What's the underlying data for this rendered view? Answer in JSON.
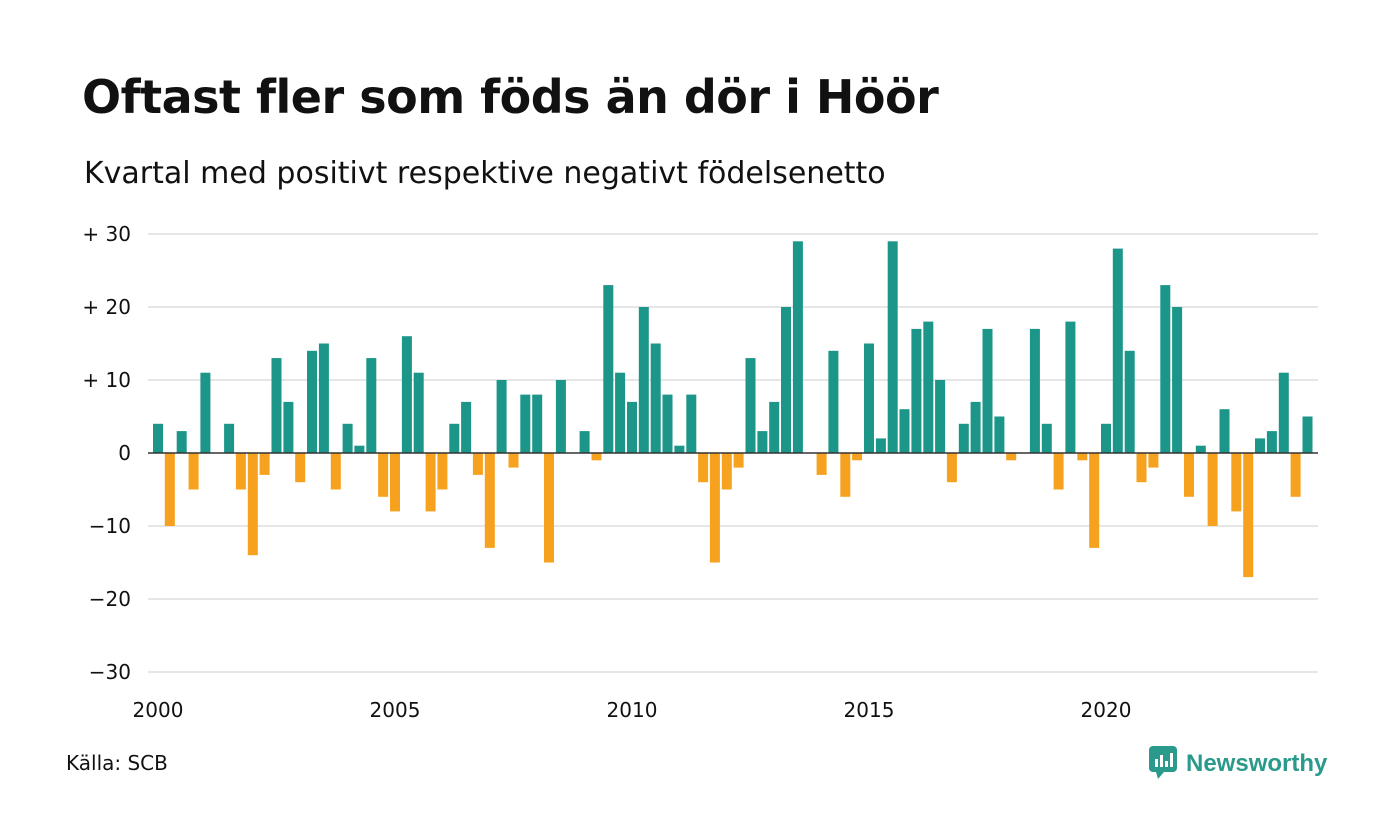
{
  "title": "Oftast fler som föds än dör i Höör",
  "subtitle": "Kvartal med positivt respektive negativt födelsenetto",
  "source": "Källa: SCB",
  "brand": "Newsworthy",
  "colors": {
    "positive": "#1b9688",
    "negative": "#f6a21e",
    "grid": "#dddddd",
    "brand": "#2a9a8c"
  },
  "chart_data": {
    "type": "bar",
    "x_start": 2000.0,
    "x_step": 0.25,
    "x_ticks": [
      2000,
      2005,
      2010,
      2015,
      2020
    ],
    "y_ticks": [
      30,
      20,
      10,
      0,
      -10,
      -20,
      -30
    ],
    "y_tick_labels": [
      "+ 30",
      "+ 20",
      "+ 10",
      "0",
      "−10",
      "−20",
      "−30"
    ],
    "ylim": [
      -30,
      30
    ],
    "grid": true,
    "values": [
      4,
      -10,
      3,
      -5,
      11,
      0,
      4,
      -5,
      -14,
      -3,
      13,
      7,
      -4,
      14,
      15,
      -5,
      4,
      1,
      13,
      -6,
      -8,
      16,
      11,
      -8,
      -5,
      4,
      7,
      -3,
      -13,
      10,
      -2,
      8,
      8,
      -15,
      10,
      0,
      3,
      -1,
      23,
      11,
      7,
      20,
      15,
      8,
      1,
      8,
      -4,
      -15,
      -5,
      -2,
      13,
      3,
      7,
      20,
      29,
      0,
      -3,
      14,
      -6,
      -1,
      15,
      2,
      29,
      6,
      17,
      18,
      10,
      -4,
      4,
      7,
      17,
      5,
      -1,
      0,
      17,
      4,
      -5,
      18,
      -1,
      -13,
      4,
      28,
      14,
      -4,
      -2,
      23,
      20,
      -6,
      1,
      -10,
      6,
      -8,
      -17,
      2,
      3,
      11,
      -6,
      5
    ]
  }
}
